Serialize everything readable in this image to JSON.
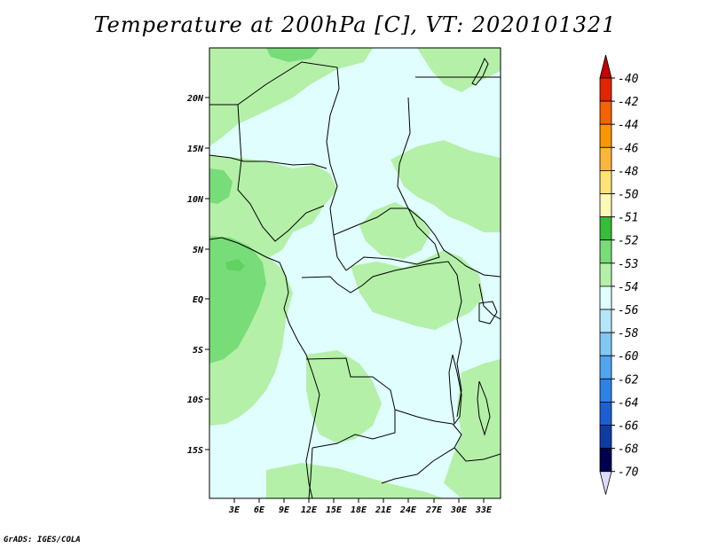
{
  "title": "Temperature at 200hPa [C], VT: 2020101321",
  "credit": "GrADS: IGES/COLA",
  "lat_labels": [
    "20N",
    "15N",
    "10N",
    "5N",
    "EQ",
    "5S",
    "10S",
    "15S"
  ],
  "lon_labels": [
    "3E",
    "6E",
    "9E",
    "12E",
    "15E",
    "18E",
    "21E",
    "24E",
    "27E",
    "30E",
    "33E"
  ],
  "colorbar": {
    "labels": [
      "-40",
      "-42",
      "-44",
      "-46",
      "-48",
      "-50",
      "-51",
      "-52",
      "-53",
      "-54",
      "-56",
      "-58",
      "-60",
      "-62",
      "-64",
      "-66",
      "-68",
      "-70"
    ],
    "colors": [
      "#a50000",
      "#e32400",
      "#f56300",
      "#f99600",
      "#fcb63c",
      "#fde278",
      "#fcf8b8",
      "#36be36",
      "#78dc78",
      "#b4f0a8",
      "#e0fefe",
      "#b4e6fa",
      "#82c8f5",
      "#50a5f0",
      "#2d82e6",
      "#1c5fd2",
      "#0d3ca5",
      "#000050"
    ],
    "top_arrow_color": "#c40000",
    "bottom_arrow_color": "#dcdcfa"
  },
  "map_colors": {
    "dominant": "#e0fefe",
    "secondary": "#b4f0a8",
    "tertiary": "#78dc78"
  }
}
